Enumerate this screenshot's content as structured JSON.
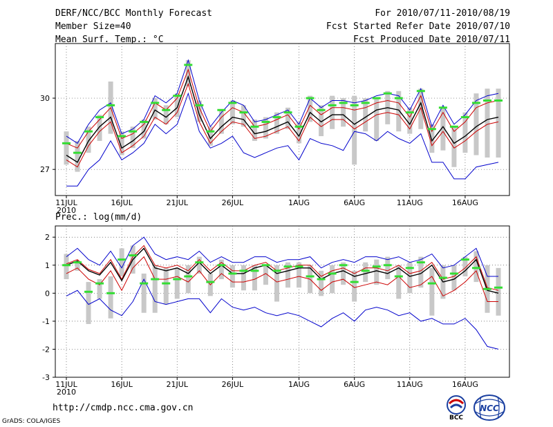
{
  "header": {
    "title": "DERF/NCC/BCC Monthly Forecast",
    "member_size": "Member Size=40",
    "top_var": "Mean Surf. Temp.: °C",
    "period": "For 2010/07/11-2010/08/19",
    "started": "Fcst Started Refer Date 2010/07/10",
    "produced": "Fcst Produced Date 2010/07/11"
  },
  "footer": {
    "url": "http://cmdp.ncc.cma.gov.cn",
    "credit": "GrADS: COLA/IGES",
    "logo_bcc": "BCC",
    "logo_ncc": "NCC"
  },
  "colors": {
    "envelope": "#0000cc",
    "mean": "#000000",
    "clim": "#cc0000",
    "box": "#c8c8c8",
    "obs": "#33dd33"
  },
  "chart_data": [
    {
      "type": "line",
      "title": "Mean Surf. Temp.: °C",
      "x_labels": [
        "11JUL",
        "16JUL",
        "21JUL",
        "26JUL",
        "1AUG",
        "6AUG",
        "11AUG",
        "16AUG"
      ],
      "x_label_days": [
        1,
        6,
        11,
        16,
        22,
        27,
        32,
        37
      ],
      "x_sublabel": "2010",
      "days": 40,
      "ylim": [
        25.9,
        32.3
      ],
      "yticks": [
        27,
        30
      ],
      "series": {
        "max": [
          28.4,
          28.1,
          28.9,
          29.5,
          29.8,
          28.5,
          28.7,
          29.1,
          30.1,
          29.8,
          30.2,
          31.6,
          29.9,
          28.8,
          29.4,
          29.9,
          29.7,
          29.0,
          29.1,
          29.3,
          29.5,
          28.9,
          30.0,
          29.6,
          29.9,
          29.9,
          29.8,
          29.9,
          30.1,
          30.2,
          30.1,
          29.5,
          30.4,
          28.8,
          29.7,
          28.9,
          29.3,
          29.9,
          30.1,
          30.2
        ],
        "p_up": [
          28.1,
          27.9,
          28.6,
          29.1,
          29.6,
          28.3,
          28.5,
          28.9,
          29.8,
          29.5,
          30.0,
          31.2,
          29.6,
          28.6,
          29.2,
          29.6,
          29.4,
          28.8,
          28.9,
          29.1,
          29.3,
          28.7,
          29.7,
          29.3,
          29.6,
          29.6,
          29.5,
          29.6,
          29.8,
          29.9,
          29.8,
          29.2,
          30.1,
          28.6,
          29.4,
          28.6,
          29.0,
          29.6,
          29.8,
          29.9
        ],
        "mean": [
          27.6,
          27.3,
          28.2,
          28.8,
          29.2,
          27.9,
          28.2,
          28.6,
          29.5,
          29.2,
          29.6,
          30.9,
          29.3,
          28.3,
          28.8,
          29.2,
          29.1,
          28.5,
          28.6,
          28.8,
          29.0,
          28.4,
          29.4,
          29.0,
          29.3,
          29.3,
          28.9,
          29.2,
          29.5,
          29.6,
          29.5,
          28.9,
          29.8,
          28.2,
          28.8,
          28.1,
          28.4,
          28.8,
          29.1,
          29.2
        ],
        "clim": [
          27.4,
          27.1,
          28.0,
          28.6,
          29.0,
          27.7,
          28.0,
          28.4,
          29.2,
          28.9,
          29.4,
          30.6,
          29.0,
          28.1,
          28.6,
          29.0,
          28.9,
          28.3,
          28.4,
          28.6,
          28.8,
          28.2,
          29.2,
          28.8,
          29.1,
          29.1,
          28.7,
          29.0,
          29.3,
          29.4,
          29.3,
          28.7,
          29.6,
          28.0,
          28.6,
          27.9,
          28.2,
          28.6,
          28.9,
          29.0
        ],
        "min": [
          26.3,
          26.3,
          27.0,
          27.4,
          28.2,
          27.4,
          27.7,
          28.1,
          28.9,
          28.5,
          28.9,
          30.2,
          28.6,
          27.9,
          28.1,
          28.4,
          27.7,
          27.5,
          27.7,
          27.9,
          28.0,
          27.4,
          28.3,
          28.1,
          28.0,
          27.8,
          28.6,
          28.5,
          28.2,
          28.6,
          28.3,
          28.1,
          28.5,
          27.3,
          27.3,
          26.6,
          26.6,
          27.1,
          27.2,
          27.3
        ],
        "obs": [
          28.1,
          27.7,
          28.6,
          29.2,
          29.7,
          28.4,
          28.6,
          29.0,
          29.8,
          29.5,
          30.1,
          31.4,
          29.7,
          28.6,
          29.5,
          29.8,
          29.4,
          28.8,
          29.0,
          29.2,
          29.4,
          28.8,
          30.0,
          29.5,
          29.7,
          29.8,
          29.7,
          29.8,
          30.0,
          30.2,
          30.0,
          29.4,
          30.3,
          28.7,
          29.6,
          28.8,
          29.2,
          29.8,
          29.9,
          29.9
        ],
        "box_top": [
          28.6,
          28.2,
          28.8,
          29.3,
          30.7,
          28.6,
          28.8,
          29.1,
          30.0,
          29.7,
          30.2,
          31.6,
          29.9,
          28.8,
          29.5,
          29.9,
          29.7,
          29.1,
          29.2,
          29.4,
          29.6,
          29.0,
          30.1,
          29.7,
          30.1,
          30.0,
          30.1,
          30.0,
          30.0,
          30.3,
          30.3,
          29.6,
          30.4,
          28.9,
          29.6,
          28.8,
          29.4,
          30.2,
          30.4,
          30.4
        ],
        "box_bot": [
          27.2,
          26.9,
          27.7,
          28.2,
          28.5,
          27.6,
          27.9,
          28.3,
          29.1,
          28.9,
          29.2,
          30.5,
          29.0,
          28.0,
          28.5,
          28.9,
          28.8,
          28.2,
          28.3,
          28.5,
          28.7,
          28.1,
          29.0,
          28.4,
          28.7,
          28.8,
          27.2,
          28.6,
          28.2,
          28.9,
          28.6,
          28.5,
          28.7,
          27.7,
          27.8,
          27.1,
          27.7,
          27.6,
          27.5,
          27.5
        ]
      }
    },
    {
      "type": "line",
      "title": "Prec.: log(mm/d)",
      "x_labels": [
        "11JUL",
        "16JUL",
        "21JUL",
        "26JUL",
        "1AUG",
        "6AUG",
        "11AUG",
        "16AUG"
      ],
      "x_label_days": [
        1,
        6,
        11,
        16,
        22,
        27,
        32,
        37
      ],
      "x_sublabel": "2010",
      "days": 40,
      "ylim": [
        -3,
        2.4
      ],
      "yticks": [
        -3,
        -2,
        -1,
        0,
        1,
        2
      ],
      "series": {
        "max": [
          1.3,
          1.6,
          1.2,
          1.0,
          1.5,
          0.9,
          1.7,
          2.0,
          1.4,
          1.2,
          1.3,
          1.2,
          1.5,
          1.1,
          1.3,
          1.1,
          1.1,
          1.3,
          1.3,
          1.1,
          1.2,
          1.2,
          1.3,
          0.9,
          1.1,
          1.2,
          1.1,
          1.3,
          1.3,
          1.2,
          1.3,
          1.1,
          1.2,
          1.4,
          0.9,
          1.0,
          1.3,
          1.6,
          0.6,
          0.6
        ],
        "p_up": [
          1.05,
          1.2,
          0.85,
          0.7,
          1.2,
          0.5,
          1.3,
          1.7,
          1.0,
          0.9,
          1.0,
          0.8,
          1.2,
          0.8,
          1.1,
          0.8,
          0.8,
          1.0,
          1.1,
          0.8,
          0.9,
          1.0,
          1.0,
          0.6,
          0.8,
          0.9,
          0.7,
          0.9,
          0.9,
          0.8,
          1.0,
          0.7,
          0.8,
          1.1,
          0.5,
          0.6,
          0.9,
          1.3,
          0.2,
          0.1
        ],
        "mean": [
          1.0,
          1.15,
          0.8,
          0.65,
          1.1,
          0.45,
          1.2,
          1.6,
          0.9,
          0.8,
          0.9,
          0.7,
          1.1,
          0.7,
          1.0,
          0.7,
          0.7,
          0.9,
          1.0,
          0.7,
          0.8,
          0.9,
          0.9,
          0.5,
          0.7,
          0.8,
          0.6,
          0.7,
          0.8,
          0.7,
          0.9,
          0.6,
          0.7,
          1.0,
          0.4,
          0.5,
          0.8,
          1.2,
          0.1,
          0.0
        ],
        "clim": [
          0.7,
          0.9,
          0.5,
          0.3,
          0.8,
          0.1,
          0.9,
          1.3,
          0.5,
          0.5,
          0.6,
          0.4,
          0.8,
          0.3,
          0.7,
          0.4,
          0.4,
          0.5,
          0.7,
          0.4,
          0.5,
          0.6,
          0.5,
          0.1,
          0.4,
          0.5,
          0.2,
          0.3,
          0.4,
          0.3,
          0.6,
          0.2,
          0.3,
          0.6,
          -0.1,
          0.1,
          0.4,
          0.8,
          -0.3,
          -0.3
        ],
        "min": [
          -0.1,
          0.1,
          -0.4,
          -0.2,
          -0.6,
          -0.8,
          -0.3,
          0.5,
          -0.3,
          -0.4,
          -0.3,
          -0.2,
          -0.2,
          -0.7,
          -0.2,
          -0.5,
          -0.6,
          -0.5,
          -0.7,
          -0.8,
          -0.7,
          -0.8,
          -1.0,
          -1.2,
          -0.9,
          -0.7,
          -1.0,
          -0.6,
          -0.5,
          -0.6,
          -0.8,
          -0.7,
          -1.0,
          -0.9,
          -1.1,
          -1.1,
          -0.9,
          -1.3,
          -1.9,
          -2.0
        ],
        "obs": [
          1.0,
          1.1,
          0.05,
          0.35,
          0.0,
          1.2,
          1.35,
          0.35,
          0.5,
          0.35,
          0.5,
          0.6,
          1.1,
          0.4,
          1.0,
          0.7,
          0.8,
          0.8,
          1.0,
          0.8,
          0.95,
          0.95,
          0.6,
          0.5,
          0.7,
          1.0,
          0.4,
          0.8,
          0.95,
          1.0,
          0.6,
          0.9,
          1.1,
          0.35,
          0.55,
          0.7,
          1.2,
          0.9,
          0.15,
          0.2
        ],
        "box_top": [
          1.4,
          1.1,
          0.4,
          0.5,
          0.6,
          1.6,
          1.7,
          0.7,
          1.0,
          0.9,
          0.9,
          1.0,
          1.3,
          0.7,
          1.2,
          1.0,
          1.0,
          1.0,
          1.0,
          1.0,
          1.1,
          1.1,
          1.0,
          0.8,
          1.0,
          1.1,
          0.8,
          1.1,
          1.2,
          1.3,
          1.0,
          1.1,
          1.3,
          0.9,
          1.0,
          1.0,
          1.3,
          1.5,
          1.0,
          0.9
        ],
        "box_bot": [
          0.5,
          0.8,
          -1.1,
          -0.2,
          -0.9,
          0.6,
          0.7,
          -0.7,
          -0.7,
          -0.4,
          -0.2,
          0.0,
          0.7,
          -0.1,
          0.5,
          0.2,
          0.1,
          0.1,
          0.3,
          -0.3,
          0.2,
          0.2,
          0.0,
          -0.1,
          0.0,
          0.3,
          -0.3,
          0.4,
          0.3,
          0.5,
          -0.2,
          0.0,
          0.2,
          -0.8,
          -0.2,
          0.1,
          0.6,
          0.4,
          -0.7,
          -0.8
        ]
      }
    }
  ]
}
